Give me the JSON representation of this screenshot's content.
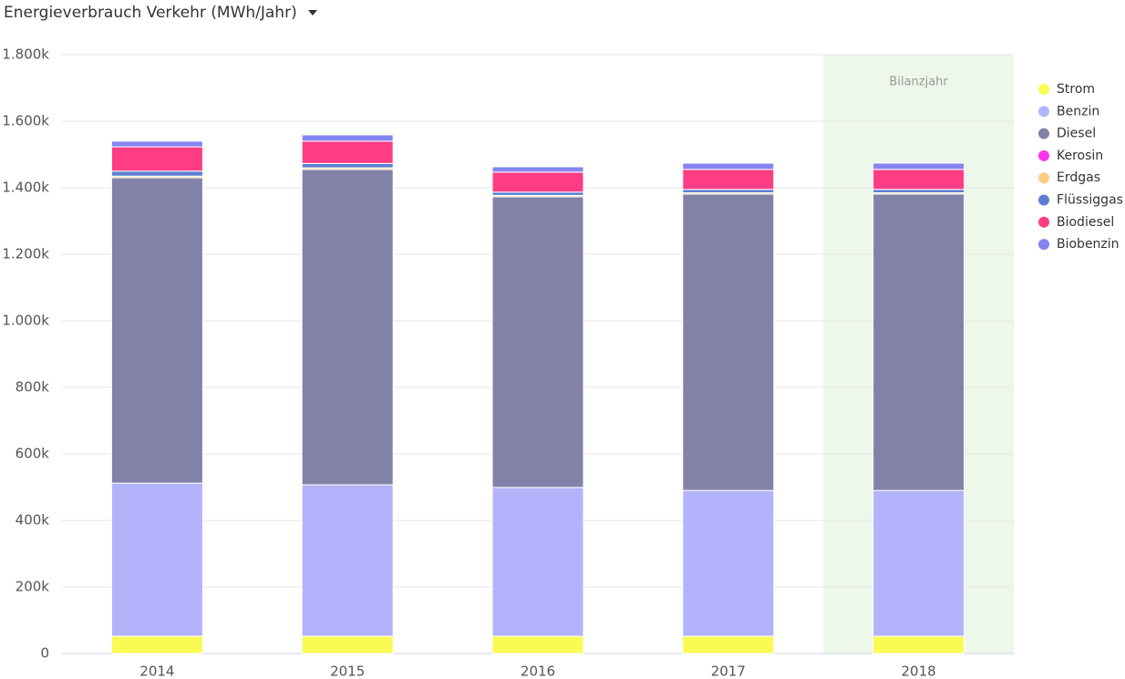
{
  "chart_data": {
    "type": "stacked-bar",
    "title": "Energieverbrauch Verkehr (MWh/Jahr)",
    "categories": [
      "2014",
      "2015",
      "2016",
      "2017",
      "2018"
    ],
    "series": [
      {
        "name": "Strom",
        "color": "#fafa55",
        "values": [
          52000,
          52000,
          52000,
          52000,
          52000
        ]
      },
      {
        "name": "Benzin",
        "color": "#b3b3fc",
        "values": [
          460000,
          455000,
          447000,
          438000,
          438000
        ]
      },
      {
        "name": "Diesel",
        "color": "#8282a9",
        "values": [
          918000,
          948000,
          874000,
          891000,
          891000
        ]
      },
      {
        "name": "Kerosin",
        "color": "#ff33ee",
        "values": [
          0,
          0,
          0,
          0,
          0
        ]
      },
      {
        "name": "Erdgas",
        "color": "#ffcc80",
        "values": [
          5000,
          5000,
          4000,
          4000,
          4000
        ]
      },
      {
        "name": "Flüssiggas",
        "color": "#5b7fd0",
        "values": [
          15000,
          13000,
          10000,
          10000,
          10000
        ]
      },
      {
        "name": "Biodiesel",
        "color": "#ff3d85",
        "values": [
          73000,
          67000,
          60000,
          60000,
          60000
        ]
      },
      {
        "name": "Biobenzin",
        "color": "#8585f0",
        "values": [
          17000,
          19000,
          16000,
          19000,
          19000
        ]
      }
    ],
    "ylim": [
      0,
      1800000
    ],
    "yticks": [
      0,
      {
        "value": 200000,
        "label": "200k"
      },
      {
        "value": 400000,
        "label": "400k"
      },
      {
        "value": 600000,
        "label": "600k"
      },
      {
        "value": 800000,
        "label": "800k"
      },
      {
        "value": 1000000,
        "label": "1.000k"
      },
      {
        "value": 1200000,
        "label": "1.200k"
      },
      {
        "value": 1400000,
        "label": "1.400k"
      },
      {
        "value": 1600000,
        "label": "1.600k"
      },
      {
        "value": 1800000,
        "label": "1.800k"
      }
    ],
    "grid": true,
    "legend": "right",
    "annotation": {
      "text": "Bilanzjahr",
      "x": "2018",
      "color": "#edf7ea"
    }
  }
}
